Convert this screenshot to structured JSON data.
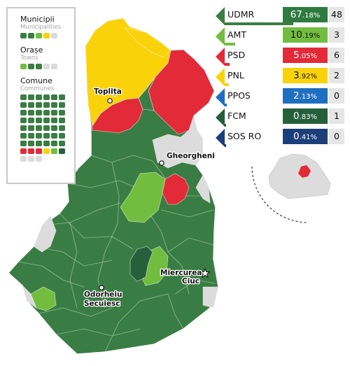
{
  "colors": {
    "udmr": "#3a7d44",
    "udmr_pct": "#2f7a3f",
    "amt": "#72bd3f",
    "psd": "#e32a38",
    "pnl": "#fad20a",
    "ppos": "#1f6fc1",
    "fcm": "#25603b",
    "sosro": "#1c3f7a",
    "no_data": "#dcdcdc",
    "seat_box": "#e6e6e6"
  },
  "legend": {
    "municipii": {
      "title": "Municipii",
      "subtitle": "Municipalities",
      "squares": [
        "udmr",
        "udmr",
        "amt",
        "pnl",
        "no_data"
      ]
    },
    "orase": {
      "title": "Orașe",
      "subtitle": "Towns",
      "squares": [
        "amt",
        "udmr",
        "udmr",
        "no_data",
        "no_data"
      ]
    },
    "comune": {
      "title": "Comune",
      "subtitle": "Communes",
      "squares": [
        "udmr",
        "udmr",
        "udmr",
        "udmr",
        "udmr",
        "udmr",
        "udmr",
        "udmr",
        "udmr",
        "udmr",
        "udmr",
        "udmr",
        "udmr",
        "udmr",
        "udmr",
        "udmr",
        "udmr",
        "udmr",
        "udmr",
        "udmr",
        "udmr",
        "udmr",
        "udmr",
        "udmr",
        "udmr",
        "udmr",
        "udmr",
        "udmr",
        "udmr",
        "udmr",
        "udmr",
        "udmr",
        "udmr",
        "udmr",
        "udmr",
        "udmr",
        "udmr",
        "udmr",
        "udmr",
        "udmr",
        "udmr",
        "udmr",
        "psd",
        "psd",
        "psd",
        "pnl",
        "amt",
        "fcm",
        "no_data",
        "no_data",
        "no_data"
      ]
    }
  },
  "results": [
    {
      "party": "UDMR",
      "int": "67",
      "dec": ".18%",
      "seats": "48",
      "share": 67.18,
      "color": "udmr",
      "pct_color": "udmr_pct",
      "dark_text": false
    },
    {
      "party": "AMT",
      "int": "10",
      "dec": ".19%",
      "seats": "3",
      "share": 10.19,
      "color": "amt",
      "pct_color": "amt",
      "dark_text": true
    },
    {
      "party": "PSD",
      "int": "5",
      "dec": ".05%",
      "seats": "6",
      "share": 5.05,
      "color": "psd",
      "pct_color": "psd",
      "dark_text": false
    },
    {
      "party": "PNL",
      "int": "3",
      "dec": ".92%",
      "seats": "2",
      "share": 3.92,
      "color": "pnl",
      "pct_color": "pnl",
      "dark_text": true
    },
    {
      "party": "PPOS",
      "int": "2",
      "dec": ".13%",
      "seats": "0",
      "share": 2.13,
      "color": "ppos",
      "pct_color": "ppos",
      "dark_text": false
    },
    {
      "party": "FCM",
      "int": "0",
      "dec": ".83%",
      "seats": "1",
      "share": 0.83,
      "color": "fcm",
      "pct_color": "fcm",
      "dark_text": false
    },
    {
      "party": "SOS RO",
      "int": "0",
      "dec": ".41%",
      "seats": "0",
      "share": 0.41,
      "color": "sosro",
      "pct_color": "sosro",
      "dark_text": false
    }
  ],
  "cities": [
    {
      "name": "Toplița"
    },
    {
      "name": "Gheorgheni"
    },
    {
      "name": "Miercurea",
      "name2": "Ciuc"
    },
    {
      "name": "Odorheiu",
      "name2": "Secuiesc"
    }
  ]
}
